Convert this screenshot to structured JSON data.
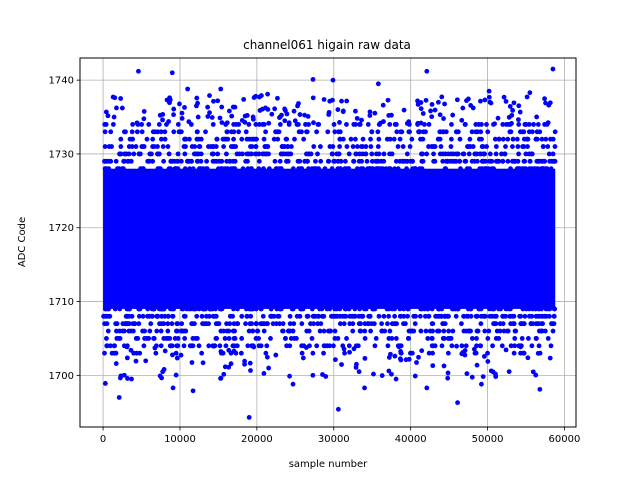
{
  "chart_data": {
    "type": "scatter",
    "title": "channel061 higain raw data",
    "xlabel": "sample number",
    "ylabel": "ADC Code",
    "xlim": [
      -3000,
      61500
    ],
    "ylim": [
      1693,
      1743
    ],
    "x_ticks": [
      0,
      10000,
      20000,
      30000,
      40000,
      50000,
      60000
    ],
    "y_ticks": [
      1700,
      1710,
      1720,
      1730,
      1740
    ],
    "grid": true,
    "marker_color": "#0000ff",
    "sample_count": 58860,
    "dense_band": {
      "y_range": [
        1708,
        1729
      ],
      "x_range": [
        0,
        58800
      ]
    },
    "outliers": [
      {
        "x": 4600,
        "y": 1741.2
      },
      {
        "x": 9000,
        "y": 1741.0
      },
      {
        "x": 27300,
        "y": 1740.1
      },
      {
        "x": 29900,
        "y": 1740.0
      },
      {
        "x": 42100,
        "y": 1741.2
      },
      {
        "x": 58500,
        "y": 1741.5
      },
      {
        "x": 11000,
        "y": 1738.8
      },
      {
        "x": 15300,
        "y": 1738.8
      },
      {
        "x": 21400,
        "y": 1738.1
      },
      {
        "x": 35800,
        "y": 1739.5
      },
      {
        "x": 50200,
        "y": 1738.5
      },
      {
        "x": 55500,
        "y": 1738.3
      },
      {
        "x": 300,
        "y": 1698.9
      },
      {
        "x": 2100,
        "y": 1697.0
      },
      {
        "x": 9100,
        "y": 1698.3
      },
      {
        "x": 11700,
        "y": 1697.9
      },
      {
        "x": 19000,
        "y": 1694.3
      },
      {
        "x": 30600,
        "y": 1695.4
      },
      {
        "x": 33300,
        "y": 1700.5
      },
      {
        "x": 34000,
        "y": 1698.3
      },
      {
        "x": 42100,
        "y": 1698.3
      },
      {
        "x": 46100,
        "y": 1696.3
      },
      {
        "x": 49200,
        "y": 1698.8
      },
      {
        "x": 56800,
        "y": 1698.1
      },
      {
        "x": 24700,
        "y": 1698.8
      },
      {
        "x": 3700,
        "y": 1699.5
      },
      {
        "x": 40600,
        "y": 1699.9
      }
    ]
  }
}
